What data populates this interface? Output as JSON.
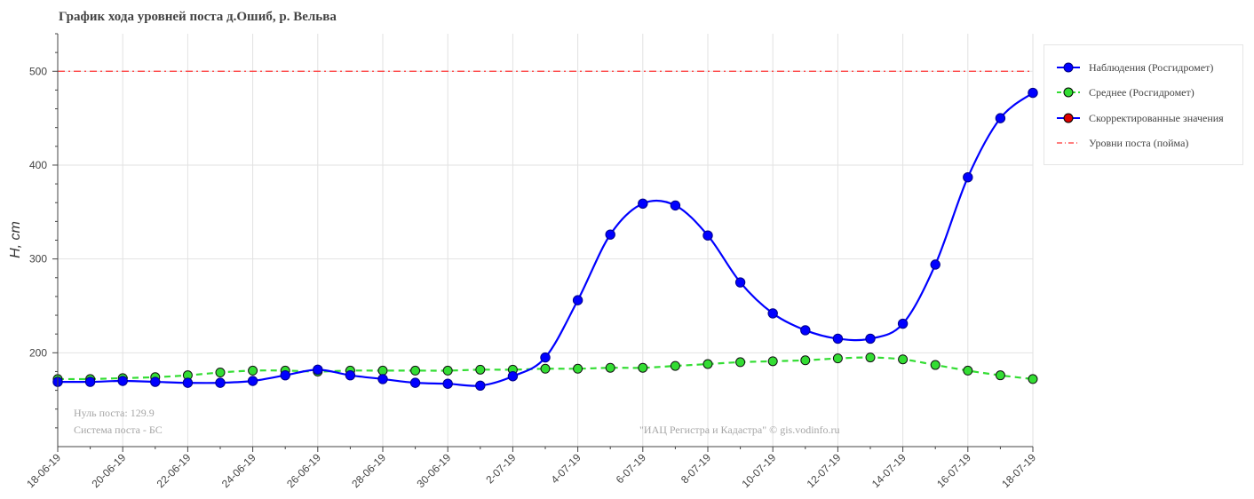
{
  "title": "График хода уровней поста д.Ошиб, р. Вельва",
  "notes": {
    "zero": "Нуль поста: 129.9",
    "system": "Система поста - БС",
    "copyright": "\"ИАЦ Регистра и Кадастра\" © gis.vodinfo.ru"
  },
  "legend": [
    {
      "label": "Наблюдения (Росгидромет)",
      "color": "#0000ff",
      "marker": "#0000ff",
      "dash": "solid"
    },
    {
      "label": "Среднее (Росгидромет)",
      "color": "#33dd33",
      "marker": "#33dd33",
      "dash": "dashed"
    },
    {
      "label": "Скорректированные значения",
      "color": "#0000ff",
      "marker": "#dd0000",
      "dash": "solid"
    },
    {
      "label": "Уровни поста (пойма)",
      "color": "#ff3333",
      "marker": "",
      "dash": "dashdot"
    }
  ],
  "chart_data": {
    "type": "line",
    "ylabel": "H, cm",
    "xlabel": "",
    "ylim": [
      100,
      540
    ],
    "yticks": [
      200,
      300,
      400,
      500
    ],
    "xticks": [
      "18-06-19",
      "20-06-19",
      "22-06-19",
      "24-06-19",
      "26-06-19",
      "28-06-19",
      "30-06-19",
      "2-07-19",
      "4-07-19",
      "6-07-19",
      "8-07-19",
      "10-07-19",
      "12-07-19",
      "14-07-19",
      "16-07-19",
      "18-07-19"
    ],
    "grid": true,
    "legend_position": "right",
    "x": [
      "18-06-19",
      "19-06-19",
      "20-06-19",
      "21-06-19",
      "22-06-19",
      "23-06-19",
      "24-06-19",
      "25-06-19",
      "26-06-19",
      "27-06-19",
      "28-06-19",
      "29-06-19",
      "30-06-19",
      "1-07-19",
      "2-07-19",
      "3-07-19",
      "4-07-19",
      "5-07-19",
      "6-07-19",
      "7-07-19",
      "8-07-19",
      "9-07-19",
      "10-07-19",
      "11-07-19",
      "12-07-19",
      "13-07-19",
      "14-07-19",
      "15-07-19",
      "16-07-19",
      "17-07-19",
      "18-07-19"
    ],
    "series": [
      {
        "name": "Наблюдения (Росгидромет)",
        "color": "#0000ff",
        "dash": "solid",
        "values": [
          169,
          169,
          170,
          169,
          168,
          168,
          170,
          176,
          182,
          176,
          172,
          168,
          167,
          165,
          175,
          195,
          256,
          326,
          359,
          357,
          325,
          275,
          242,
          224,
          215,
          215,
          231,
          294,
          387,
          450,
          477
        ]
      },
      {
        "name": "Среднее (Росгидромет)",
        "color": "#33dd33",
        "dash": "dashed",
        "values": [
          172,
          172,
          173,
          174,
          176,
          179,
          181,
          181,
          180,
          181,
          181,
          181,
          181,
          182,
          182,
          183,
          183,
          184,
          184,
          186,
          188,
          190,
          191,
          192,
          194,
          195,
          193,
          187,
          181,
          176,
          172
        ]
      },
      {
        "name": "Уровни поста (пойма)",
        "color": "#ff3333",
        "dash": "dashdot",
        "level": 500
      }
    ]
  }
}
